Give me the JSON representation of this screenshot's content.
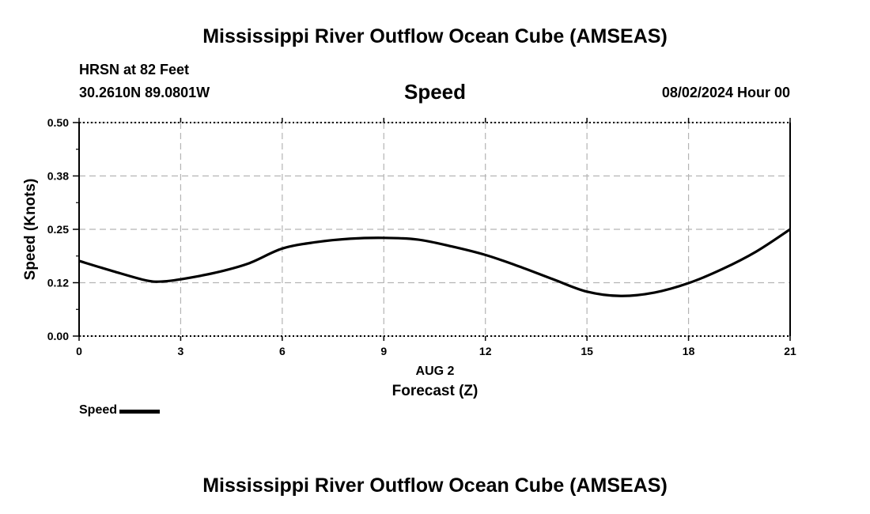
{
  "header": {
    "title": "Mississippi River Outflow Ocean Cube (AMSEAS)",
    "station": "HRSN at 82 Feet",
    "coords": "30.2610N  89.0801W",
    "subtitle": "Speed",
    "datetime": "08/02/2024 Hour 00"
  },
  "footer": {
    "title": "Mississippi River Outflow Ocean Cube (AMSEAS)"
  },
  "legend": {
    "label": "Speed"
  },
  "colors": {
    "line": "#000000",
    "grid": "#b4b4b4"
  },
  "chart_data": {
    "type": "line",
    "title": "Speed",
    "xlabel": "Forecast (Z)",
    "xlabel_date": "AUG 2",
    "ylabel": "Speed (Knots)",
    "xlim": [
      0,
      21
    ],
    "ylim": [
      0,
      0.5
    ],
    "xticks": [
      0,
      3,
      6,
      9,
      12,
      15,
      18,
      21
    ],
    "xtick_labels": [
      "0",
      "3",
      "6",
      "9",
      "12",
      "15",
      "18",
      "21"
    ],
    "yticks": [
      0,
      0.125,
      0.25,
      0.375,
      0.5
    ],
    "ytick_labels": [
      "0.00",
      "0.12",
      "0.25",
      "0.38",
      "0.50"
    ],
    "grid": true,
    "legend_position": "bottom-left",
    "series": [
      {
        "name": "Speed",
        "x": [
          0,
          1,
          2,
          2.5,
          3,
          4,
          5,
          6,
          7,
          8,
          9,
          10,
          11,
          12,
          13,
          14,
          15,
          16,
          17,
          18,
          19,
          20,
          21
        ],
        "values": [
          0.176,
          0.152,
          0.13,
          0.128,
          0.133,
          0.148,
          0.17,
          0.205,
          0.22,
          0.228,
          0.23,
          0.226,
          0.21,
          0.19,
          0.163,
          0.133,
          0.104,
          0.094,
          0.102,
          0.124,
          0.157,
          0.198,
          0.25
        ]
      }
    ]
  }
}
